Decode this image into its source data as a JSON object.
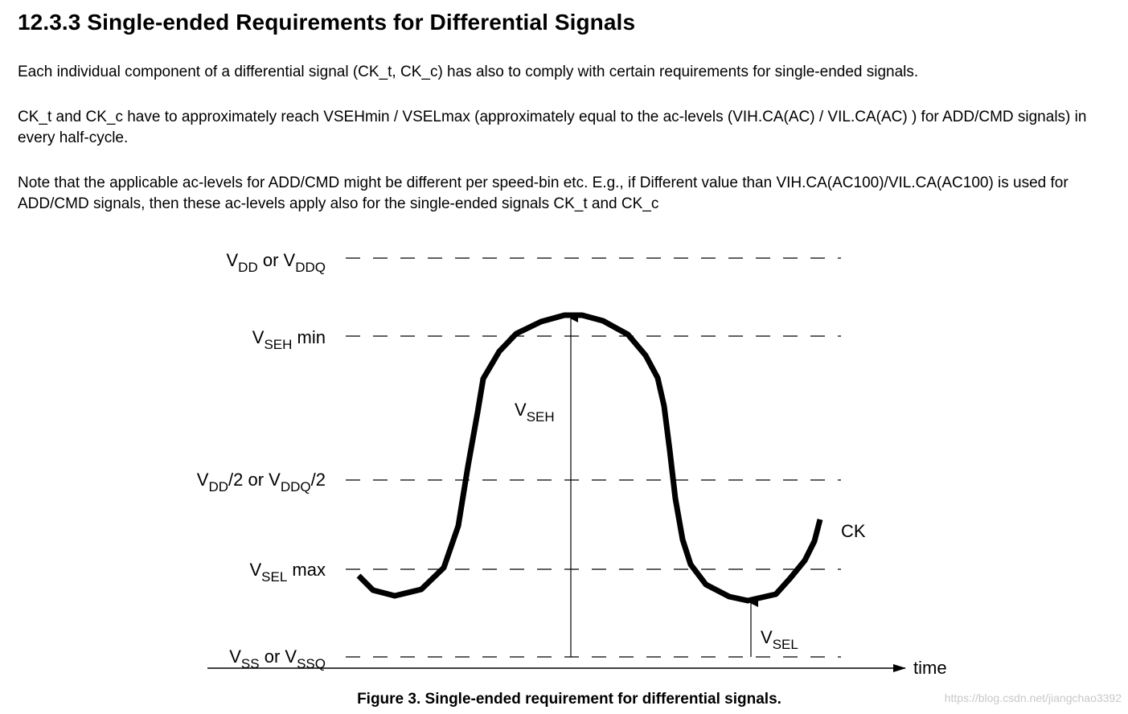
{
  "heading": "12.3.3 Single-ended Requirements for Differential Signals",
  "paragraphs": [
    "Each individual component of a differential signal (CK_t, CK_c) has also to comply with certain requirements for single-ended signals.",
    "CK_t and CK_c have to approximately reach VSEHmin / VSELmax (approximately equal to the ac-levels (VIH.CA(AC) / VIL.CA(AC) ) for ADD/CMD signals) in every half-cycle.",
    "Note that the applicable ac-levels for ADD/CMD  might be different per speed-bin etc. E.g., if Different value than VIH.CA(AC100)/VIL.CA(AC100) is used for ADD/CMD signals, then these ac-levels apply also for the single-ended signals CK_t and CK_c"
  ],
  "figure": {
    "levels": {
      "vdd": {
        "v1": "V",
        "s1": "DD",
        "mid": " or ",
        "v2": "V",
        "s2": "DDQ",
        "tail": ""
      },
      "vseh": {
        "v1": "V",
        "s1": "SEH",
        "tail": " min"
      },
      "vhalf": {
        "v1": "V",
        "s1": "DD",
        "mid": "/2 or ",
        "v2": "V",
        "s2": "DDQ",
        "tail": "/2"
      },
      "vsel": {
        "v1": "V",
        "s1": "SEL",
        "tail": " max"
      },
      "vss": {
        "v1": "V",
        "s1": "SS",
        "mid": " or ",
        "v2": "V",
        "s2": "SSQ",
        "tail": ""
      }
    },
    "annotations": {
      "vseh": {
        "v": "V",
        "s": "SEH"
      },
      "vsel": {
        "v": "V",
        "s": "SEL"
      },
      "signal": "CK",
      "axis": "time"
    },
    "caption": "Figure 3. Single-ended requirement for differential signals."
  },
  "watermark": "https://blog.csdn.net/jiangchao3392"
}
